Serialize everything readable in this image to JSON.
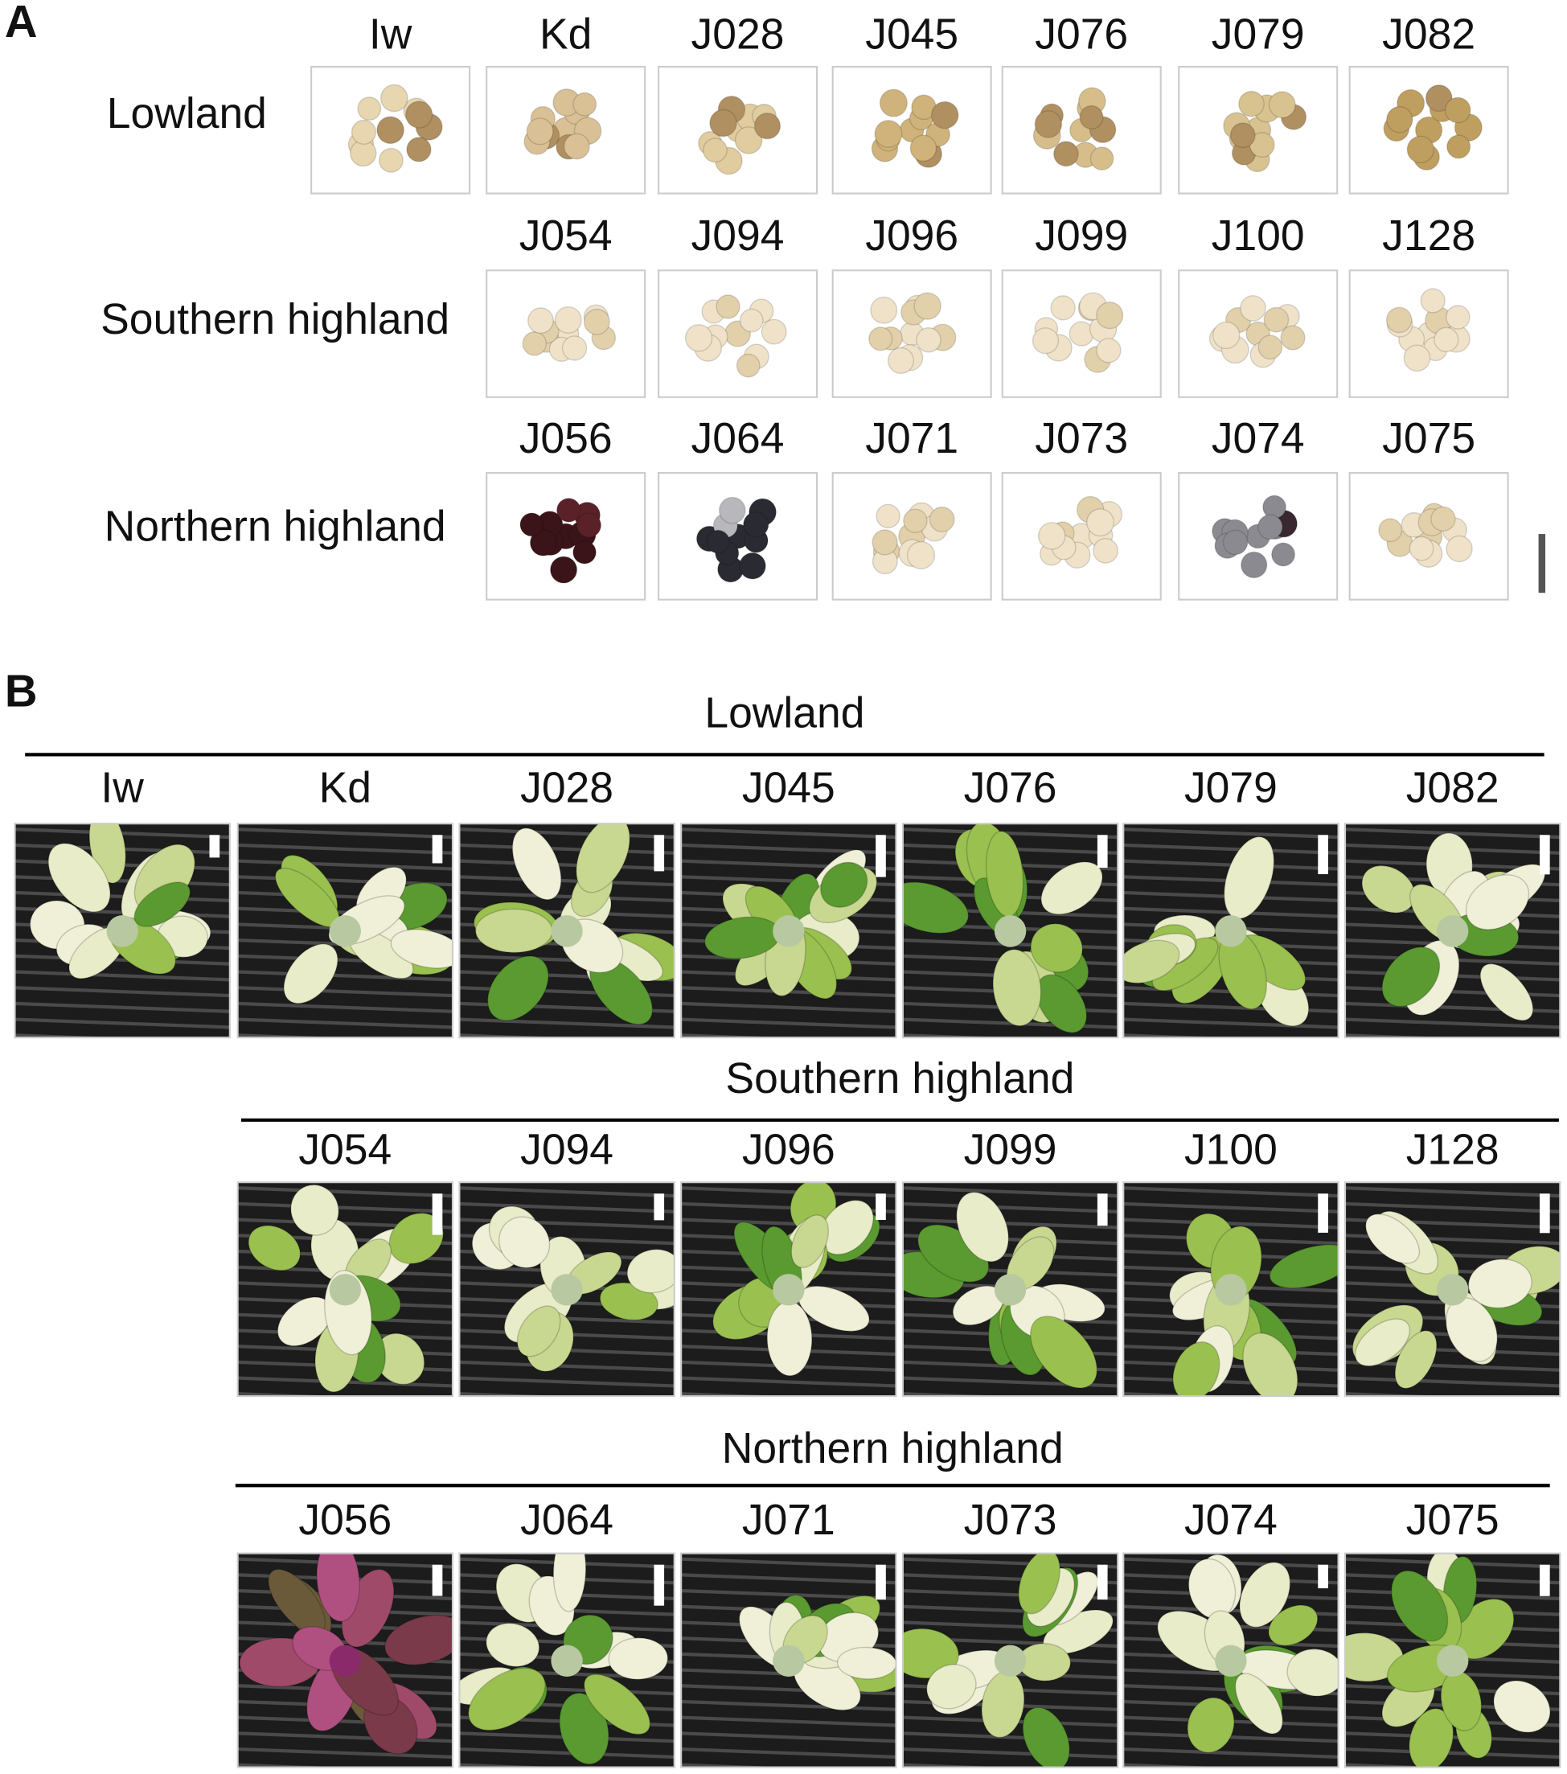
{
  "panel_a": {
    "label": "A",
    "groups": [
      {
        "name": "Lowland",
        "accessions": [
          "Iw",
          "Kd",
          "J028",
          "J045",
          "J076",
          "J079",
          "J082"
        ]
      },
      {
        "name": "Southern highland",
        "accessions": [
          "J054",
          "J094",
          "J096",
          "J099",
          "J100",
          "J128"
        ]
      },
      {
        "name": "Northern highland",
        "accessions": [
          "J056",
          "J064",
          "J071",
          "J073",
          "J074",
          "J075"
        ]
      }
    ]
  },
  "panel_b": {
    "label": "B",
    "groups": [
      {
        "name": "Lowland",
        "accessions": [
          "Iw",
          "Kd",
          "J028",
          "J045",
          "J076",
          "J079",
          "J082"
        ]
      },
      {
        "name": "Southern highland",
        "accessions": [
          "J054",
          "J094",
          "J096",
          "J099",
          "J100",
          "J128"
        ]
      },
      {
        "name": "Northern highland",
        "accessions": [
          "J056",
          "J064",
          "J071",
          "J073",
          "J074",
          "J075"
        ]
      }
    ]
  }
}
